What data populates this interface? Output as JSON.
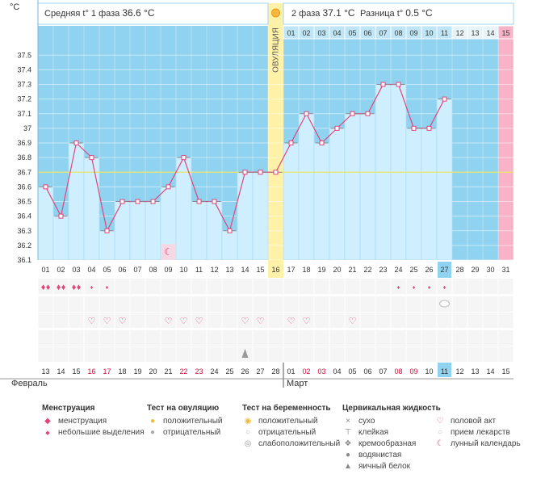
{
  "chart_data": {
    "type": "line",
    "title": "",
    "ylabel": "°C",
    "ylim": [
      36.1,
      37.5
    ],
    "yticks": [
      "37.5",
      "37.4",
      "37.3",
      "37.2",
      "37.1",
      "37",
      "36.9",
      "36.8",
      "36.7",
      "36.6",
      "36.5",
      "36.4",
      "36.3",
      "36.2",
      "36.1"
    ],
    "cycle_days": [
      "01",
      "02",
      "03",
      "04",
      "05",
      "06",
      "07",
      "08",
      "09",
      "10",
      "11",
      "12",
      "13",
      "14",
      "15",
      "16",
      "17",
      "18",
      "19",
      "20",
      "21",
      "22",
      "23",
      "24",
      "25",
      "26",
      "27",
      "28",
      "29",
      "30",
      "31"
    ],
    "top_days_phase2": [
      "01",
      "02",
      "03",
      "04",
      "05",
      "06",
      "07",
      "08",
      "09",
      "10",
      "11",
      "12",
      "13",
      "14",
      "15"
    ],
    "date_days": [
      "13",
      "14",
      "15",
      "16",
      "17",
      "18",
      "19",
      "20",
      "21",
      "22",
      "23",
      "24",
      "25",
      "26",
      "27",
      "28",
      "01",
      "02",
      "03",
      "04",
      "05",
      "06",
      "07",
      "08",
      "09",
      "10",
      "11",
      "12",
      "13",
      "14",
      "15"
    ],
    "date_red_index": [
      3,
      4,
      9,
      10,
      17,
      18,
      23,
      24
    ],
    "months": [
      "Февраль",
      "Март"
    ],
    "temperatures": [
      36.6,
      36.4,
      36.9,
      36.8,
      36.3,
      36.5,
      36.5,
      36.5,
      36.6,
      36.8,
      36.5,
      36.5,
      36.3,
      36.7,
      36.7,
      36.7,
      36.9,
      37.1,
      36.9,
      37.0,
      37.1,
      37.1,
      37.3,
      37.3,
      37.0,
      37.0,
      37.2,
      null,
      null,
      null,
      null
    ],
    "coverline": 36.7,
    "ovulation_day": 16,
    "ovulation_label": "ОВУЛЯЦИЯ",
    "current_day": 27,
    "current_date": "11",
    "phase1_label": "Средняя t° 1 фаза",
    "phase1_value": "36.6 °C",
    "phase2_label": "2 фаза",
    "phase2_value": "37.1 °C",
    "diff_label": "Разница t°",
    "diff_value": "0.5 °C",
    "menstruation_days": [
      1,
      2,
      3
    ],
    "spotting_days": [
      4,
      5,
      24,
      25,
      26,
      27
    ],
    "pill_days": [
      27
    ],
    "intercourse_days": [
      4,
      5,
      6,
      9,
      10,
      11,
      14,
      15,
      17,
      18,
      21
    ],
    "eggwhite_days": [
      14
    ],
    "moon_days": [
      9
    ],
    "colors": {
      "sky": "#8fd3f0",
      "bar": "#cfefff",
      "bar_border": "#9fd4ef",
      "line": "#e0457b",
      "ovulation": "#fff2a8",
      "pink": "#f9b3c8",
      "cover": "#e8e66a",
      "today": "#8fd3f0"
    }
  },
  "legend": {
    "menstruation": {
      "title": "Менструация",
      "items": [
        "менструация",
        "небольшие выделения"
      ]
    },
    "ovulation_test": {
      "title": "Тест на овуляцию",
      "items": [
        "положительный",
        "отрицательный"
      ]
    },
    "pregnancy_test": {
      "title": "Тест на беременность",
      "items": [
        "положительный",
        "отрицательный",
        "слабоположительный"
      ]
    },
    "cervical": {
      "title": "Цервикальная жидкость",
      "items": [
        "сухо",
        "клейкая",
        "кремообразная",
        "водянистая",
        "яичный белок"
      ]
    },
    "other": {
      "items": [
        "половой акт",
        "прием лекарств",
        "лунный календарь"
      ]
    }
  }
}
